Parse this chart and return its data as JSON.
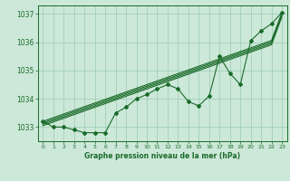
{
  "title": "Graphe pression niveau de la mer (hPa)",
  "xlim": [
    -0.5,
    23.5
  ],
  "ylim": [
    1032.5,
    1037.3
  ],
  "yticks": [
    1033,
    1034,
    1035,
    1036,
    1037
  ],
  "xticks": [
    0,
    1,
    2,
    3,
    4,
    5,
    6,
    7,
    8,
    9,
    10,
    11,
    12,
    13,
    14,
    15,
    16,
    17,
    18,
    19,
    20,
    21,
    22,
    23
  ],
  "bg_color": "#cce8d8",
  "grid_color": "#99ccb0",
  "line_color": "#1a6b2a",
  "figsize": [
    3.2,
    2.0
  ],
  "dpi": 100,
  "marked_line": [
    1033.2,
    1033.0,
    1033.0,
    1032.9,
    1032.8,
    1032.8,
    1032.8,
    1033.5,
    1033.7,
    1034.0,
    1034.15,
    1034.35,
    1034.5,
    1034.35,
    1033.9,
    1033.75,
    1034.1,
    1035.5,
    1034.9,
    1034.5,
    1036.05,
    1036.4,
    1036.65,
    1037.05
  ],
  "straight_line1": [
    1033.2,
    1033.33,
    1033.46,
    1033.59,
    1033.72,
    1033.85,
    1033.98,
    1034.11,
    1034.24,
    1034.37,
    1034.5,
    1034.63,
    1034.76,
    1034.89,
    1035.02,
    1035.15,
    1035.28,
    1035.41,
    1035.54,
    1035.67,
    1035.8,
    1035.93,
    1036.06,
    1037.05
  ],
  "straight_line2": [
    1033.15,
    1033.28,
    1033.41,
    1033.54,
    1033.67,
    1033.8,
    1033.93,
    1034.06,
    1034.19,
    1034.32,
    1034.45,
    1034.58,
    1034.71,
    1034.84,
    1034.97,
    1035.1,
    1035.23,
    1035.36,
    1035.49,
    1035.62,
    1035.75,
    1035.88,
    1036.01,
    1037.0
  ],
  "straight_line3": [
    1033.1,
    1033.23,
    1033.36,
    1033.49,
    1033.62,
    1033.75,
    1033.88,
    1034.01,
    1034.14,
    1034.27,
    1034.4,
    1034.53,
    1034.66,
    1034.79,
    1034.92,
    1035.05,
    1035.18,
    1035.31,
    1035.44,
    1035.57,
    1035.7,
    1035.83,
    1035.96,
    1036.95
  ],
  "straight_line4": [
    1033.05,
    1033.18,
    1033.31,
    1033.44,
    1033.57,
    1033.7,
    1033.83,
    1033.96,
    1034.09,
    1034.22,
    1034.35,
    1034.48,
    1034.61,
    1034.74,
    1034.87,
    1035.0,
    1035.13,
    1035.26,
    1035.39,
    1035.52,
    1035.65,
    1035.78,
    1035.91,
    1036.9
  ]
}
